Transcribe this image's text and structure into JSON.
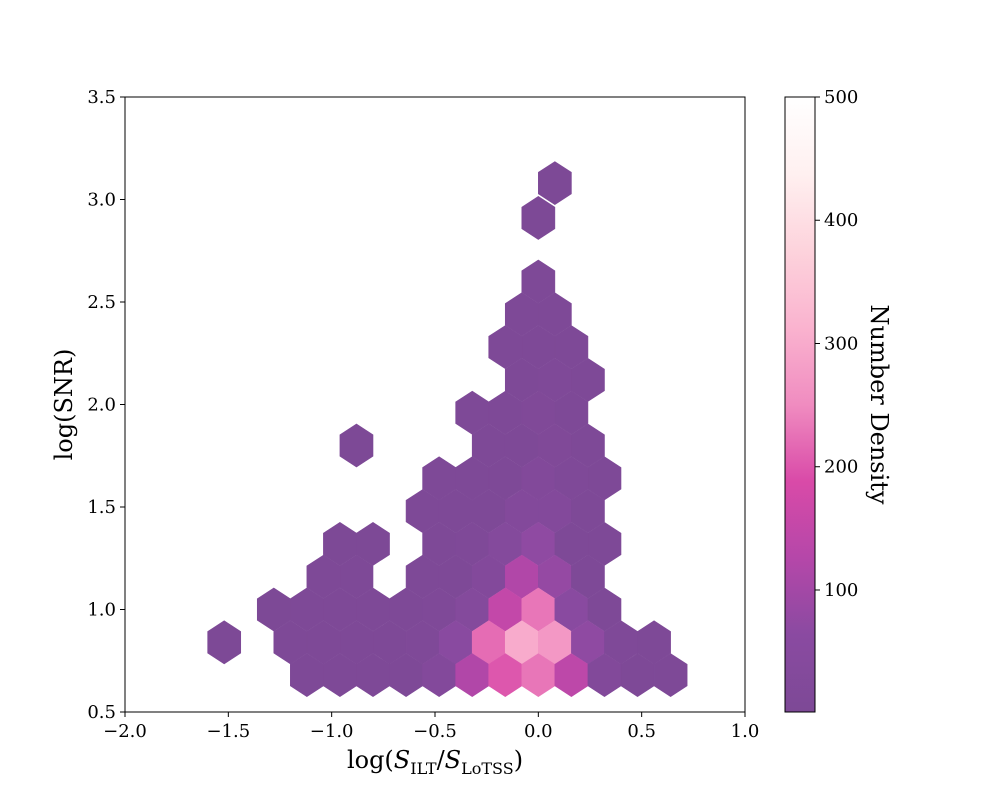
{
  "chart_data": {
    "type": "heatmap",
    "subtype": "hexbin",
    "title": "",
    "xlabel": {
      "prefix": "log(",
      "s1": "S",
      "sub1": "ILT",
      "slash": "/",
      "s2": "S",
      "sub2": "LoTSS",
      "suffix": ")"
    },
    "ylabel": "log(SNR)",
    "xlim": [
      -2.0,
      1.0
    ],
    "ylim": [
      0.5,
      3.5
    ],
    "x_ticks": [
      -2.0,
      -1.5,
      -1.0,
      -0.5,
      0.0,
      0.5,
      1.0
    ],
    "x_tick_labels": [
      "−2.0",
      "−1.5",
      "−1.0",
      "−0.5",
      "0.0",
      "0.5",
      "1.0"
    ],
    "y_ticks": [
      0.5,
      1.0,
      1.5,
      2.0,
      2.5,
      3.0,
      3.5
    ],
    "y_tick_labels": [
      "0.5",
      "1.0",
      "1.5",
      "2.0",
      "2.5",
      "3.0",
      "3.5"
    ],
    "grid": false,
    "hex_radius_x": 0.08,
    "hex_radius_y": 0.105,
    "colorbar": {
      "label": "Number Density",
      "range": [
        1,
        500
      ],
      "ticks": [
        100,
        200,
        300,
        400,
        500
      ],
      "tick_labels": [
        "100",
        "200",
        "300",
        "400",
        "500"
      ],
      "colors": [
        "#7d4996",
        "#8a4aa1",
        "#b547a9",
        "#d94aa8",
        "#f08cc0",
        "#fab3cf",
        "#fdd3dc",
        "#fff0f0",
        "#ffffff"
      ]
    },
    "bins": [
      {
        "x": 0.08,
        "y": 3.08,
        "count": 3
      },
      {
        "x": 0.0,
        "y": 2.91,
        "count": 3
      },
      {
        "x": 0.0,
        "y": 2.6,
        "count": 4
      },
      {
        "x": -0.08,
        "y": 2.44,
        "count": 5
      },
      {
        "x": 0.08,
        "y": 2.44,
        "count": 5
      },
      {
        "x": -0.16,
        "y": 2.28,
        "count": 4
      },
      {
        "x": 0.0,
        "y": 2.28,
        "count": 8
      },
      {
        "x": 0.16,
        "y": 2.28,
        "count": 5
      },
      {
        "x": -0.08,
        "y": 2.12,
        "count": 6
      },
      {
        "x": 0.08,
        "y": 2.12,
        "count": 12
      },
      {
        "x": 0.24,
        "y": 2.12,
        "count": 5
      },
      {
        "x": -0.32,
        "y": 1.96,
        "count": 4
      },
      {
        "x": -0.16,
        "y": 1.96,
        "count": 5
      },
      {
        "x": 0.0,
        "y": 1.96,
        "count": 14
      },
      {
        "x": 0.16,
        "y": 1.96,
        "count": 6
      },
      {
        "x": -0.24,
        "y": 1.8,
        "count": 4
      },
      {
        "x": -0.08,
        "y": 1.8,
        "count": 8
      },
      {
        "x": 0.08,
        "y": 1.8,
        "count": 14
      },
      {
        "x": 0.24,
        "y": 1.8,
        "count": 6
      },
      {
        "x": -0.88,
        "y": 1.8,
        "count": 3
      },
      {
        "x": -0.48,
        "y": 1.64,
        "count": 4
      },
      {
        "x": -0.32,
        "y": 1.64,
        "count": 5
      },
      {
        "x": -0.16,
        "y": 1.64,
        "count": 8
      },
      {
        "x": 0.0,
        "y": 1.64,
        "count": 25
      },
      {
        "x": 0.16,
        "y": 1.64,
        "count": 10
      },
      {
        "x": 0.32,
        "y": 1.64,
        "count": 5
      },
      {
        "x": -0.56,
        "y": 1.48,
        "count": 4
      },
      {
        "x": -0.4,
        "y": 1.48,
        "count": 6
      },
      {
        "x": -0.24,
        "y": 1.48,
        "count": 8
      },
      {
        "x": -0.08,
        "y": 1.48,
        "count": 30
      },
      {
        "x": 0.08,
        "y": 1.48,
        "count": 28
      },
      {
        "x": 0.24,
        "y": 1.48,
        "count": 6
      },
      {
        "x": -0.48,
        "y": 1.32,
        "count": 6
      },
      {
        "x": -0.32,
        "y": 1.32,
        "count": 10
      },
      {
        "x": -0.16,
        "y": 1.32,
        "count": 35
      },
      {
        "x": 0.0,
        "y": 1.32,
        "count": 70
      },
      {
        "x": 0.16,
        "y": 1.32,
        "count": 8
      },
      {
        "x": 0.32,
        "y": 1.32,
        "count": 5
      },
      {
        "x": -0.96,
        "y": 1.32,
        "count": 3
      },
      {
        "x": -0.8,
        "y": 1.32,
        "count": 3
      },
      {
        "x": -1.04,
        "y": 1.16,
        "count": 4
      },
      {
        "x": -0.88,
        "y": 1.16,
        "count": 4
      },
      {
        "x": -0.56,
        "y": 1.16,
        "count": 5
      },
      {
        "x": -0.4,
        "y": 1.16,
        "count": 8
      },
      {
        "x": -0.24,
        "y": 1.16,
        "count": 30
      },
      {
        "x": -0.08,
        "y": 1.16,
        "count": 120
      },
      {
        "x": 0.08,
        "y": 1.16,
        "count": 80
      },
      {
        "x": 0.24,
        "y": 1.16,
        "count": 6
      },
      {
        "x": -1.28,
        "y": 1.0,
        "count": 3
      },
      {
        "x": -1.12,
        "y": 1.0,
        "count": 4
      },
      {
        "x": -0.96,
        "y": 1.0,
        "count": 5
      },
      {
        "x": -0.8,
        "y": 1.0,
        "count": 5
      },
      {
        "x": -0.64,
        "y": 1.0,
        "count": 6
      },
      {
        "x": -0.48,
        "y": 1.0,
        "count": 10
      },
      {
        "x": -0.32,
        "y": 1.0,
        "count": 35
      },
      {
        "x": -0.16,
        "y": 1.0,
        "count": 150
      },
      {
        "x": 0.0,
        "y": 1.0,
        "count": 230
      },
      {
        "x": 0.16,
        "y": 1.0,
        "count": 60
      },
      {
        "x": 0.32,
        "y": 1.0,
        "count": 8
      },
      {
        "x": -1.52,
        "y": 0.84,
        "count": 3
      },
      {
        "x": -1.2,
        "y": 0.84,
        "count": 4
      },
      {
        "x": -1.04,
        "y": 0.84,
        "count": 5
      },
      {
        "x": -0.88,
        "y": 0.84,
        "count": 6
      },
      {
        "x": -0.72,
        "y": 0.84,
        "count": 8
      },
      {
        "x": -0.56,
        "y": 0.84,
        "count": 12
      },
      {
        "x": -0.4,
        "y": 0.84,
        "count": 60
      },
      {
        "x": -0.24,
        "y": 0.84,
        "count": 220
      },
      {
        "x": -0.08,
        "y": 0.84,
        "count": 300
      },
      {
        "x": 0.08,
        "y": 0.84,
        "count": 270
      },
      {
        "x": 0.24,
        "y": 0.84,
        "count": 70
      },
      {
        "x": 0.4,
        "y": 0.84,
        "count": 10
      },
      {
        "x": 0.56,
        "y": 0.84,
        "count": 5
      },
      {
        "x": -1.12,
        "y": 0.68,
        "count": 4
      },
      {
        "x": -0.96,
        "y": 0.68,
        "count": 5
      },
      {
        "x": -0.8,
        "y": 0.68,
        "count": 6
      },
      {
        "x": -0.64,
        "y": 0.68,
        "count": 8
      },
      {
        "x": -0.48,
        "y": 0.68,
        "count": 30
      },
      {
        "x": -0.32,
        "y": 0.68,
        "count": 120
      },
      {
        "x": -0.16,
        "y": 0.68,
        "count": 200
      },
      {
        "x": 0.0,
        "y": 0.68,
        "count": 230
      },
      {
        "x": 0.16,
        "y": 0.68,
        "count": 140
      },
      {
        "x": 0.32,
        "y": 0.68,
        "count": 25
      },
      {
        "x": 0.48,
        "y": 0.68,
        "count": 6
      },
      {
        "x": 0.64,
        "y": 0.68,
        "count": 4
      }
    ]
  }
}
